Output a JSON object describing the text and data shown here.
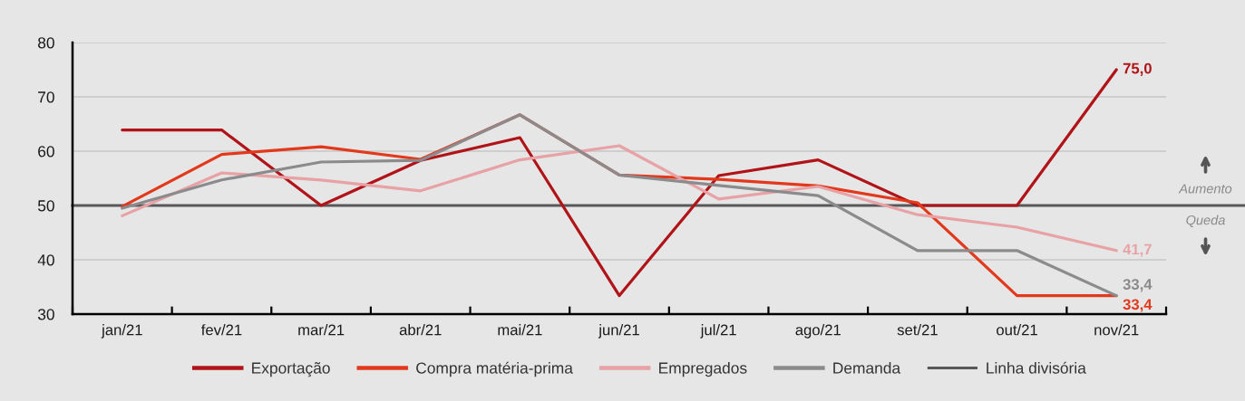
{
  "chart_data": {
    "type": "line",
    "categories": [
      "jan/21",
      "fev/21",
      "mar/21",
      "abr/21",
      "mai/21",
      "jun/21",
      "jul/21",
      "ago/21",
      "set/21",
      "out/21",
      "nov/21"
    ],
    "ylim": [
      30,
      80
    ],
    "yticks": [
      30,
      40,
      50,
      60,
      70,
      80
    ],
    "grid": "y",
    "legend": "bottom",
    "marker": "none",
    "line_style": "solid",
    "series": [
      {
        "name": "Exportação",
        "color": "#b01318",
        "values": [
          63.9,
          63.9,
          50,
          58.3,
          62.5,
          33.4,
          55.5,
          58.4,
          50,
          50,
          75.0
        ],
        "value_labels": [
          null,
          null,
          null,
          null,
          null,
          null,
          null,
          null,
          null,
          null,
          "75,0"
        ]
      },
      {
        "name": "Compra matéria-prima",
        "color": "#e2391c",
        "values": [
          49.8,
          59.4,
          60.8,
          58.5,
          66.7,
          55.6,
          54.8,
          53.6,
          50.5,
          33.4,
          33.4
        ],
        "value_labels": [
          null,
          null,
          null,
          null,
          null,
          null,
          null,
          null,
          null,
          null,
          "33,4"
        ]
      },
      {
        "name": "Empregados",
        "color": "#e8a1a5",
        "values": [
          48.1,
          56.0,
          54.7,
          52.7,
          58.4,
          61.0,
          51.2,
          53.5,
          48.3,
          46.0,
          41.7
        ],
        "value_labels": [
          null,
          null,
          null,
          null,
          null,
          null,
          null,
          null,
          null,
          null,
          "41,7"
        ]
      },
      {
        "name": "Demanda",
        "color": "#8b8b8d",
        "values": [
          49.5,
          54.7,
          58.0,
          58.3,
          66.7,
          55.6,
          53.7,
          51.8,
          41.7,
          41.7,
          33.4
        ],
        "value_labels": [
          null,
          null,
          null,
          null,
          null,
          null,
          null,
          null,
          null,
          null,
          "33,4"
        ]
      }
    ],
    "ref_lines": [
      {
        "axis": "y",
        "value": 50,
        "label": "Linha divisória",
        "color": "#58585a"
      }
    ],
    "annotations": [
      "Aumento",
      "Queda"
    ]
  }
}
